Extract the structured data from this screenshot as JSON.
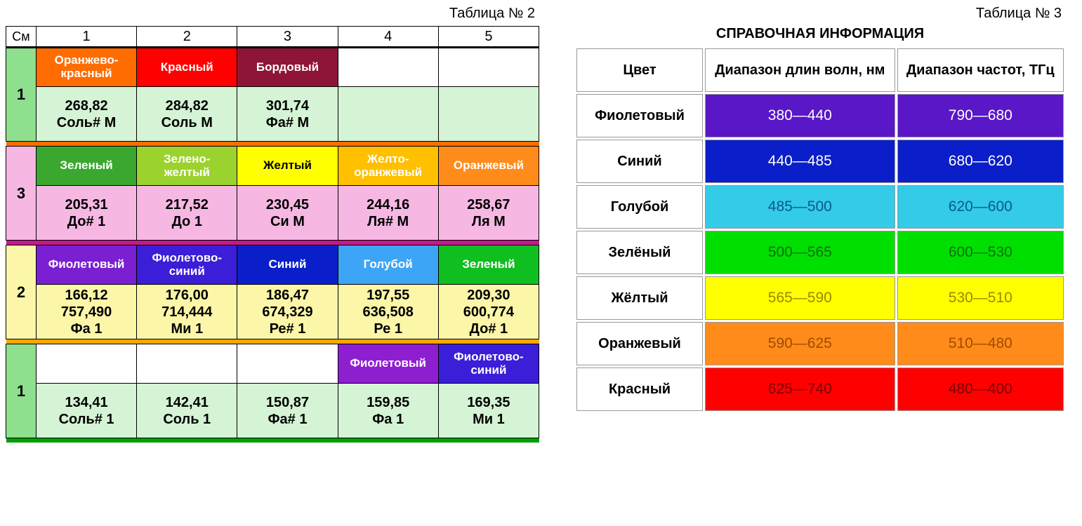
{
  "table2": {
    "title": "Таблица № 2",
    "cm_label": "См",
    "columns": [
      "1",
      "2",
      "3",
      "4",
      "5"
    ],
    "header_border_color": "#000000",
    "groups": [
      {
        "row_label": "1",
        "row_label_bg": "#8ee08e",
        "sep_color": "#ff6c00",
        "value_bg": "#d5f3d5",
        "colors": [
          {
            "text": "Оранжево-\nкрасный",
            "bg": "#ff6c00",
            "fg": "#ffffff"
          },
          {
            "text": "Красный",
            "bg": "#ff0000",
            "fg": "#ffffff"
          },
          {
            "text": "Бордовый",
            "bg": "#8e1537",
            "fg": "#ffffff"
          },
          {
            "text": "",
            "bg": "#ffffff",
            "fg": "#000000"
          },
          {
            "text": "",
            "bg": "#ffffff",
            "fg": "#000000"
          }
        ],
        "values": [
          {
            "lines": [
              "268,82",
              "Соль# М"
            ]
          },
          {
            "lines": [
              "284,82",
              "Соль М"
            ]
          },
          {
            "lines": [
              "301,74",
              "Фа# М"
            ]
          },
          {
            "lines": []
          },
          {
            "lines": []
          }
        ]
      },
      {
        "row_label": "3",
        "row_label_bg": "#f6b8e3",
        "sep_color": "#c4198b",
        "value_bg": "#f6b8e3",
        "colors": [
          {
            "text": "Зеленый",
            "bg": "#3aa82f",
            "fg": "#ffffff"
          },
          {
            "text": "Зелено-\nжелтый",
            "bg": "#9cd22e",
            "fg": "#ffffff"
          },
          {
            "text": "Желтый",
            "bg": "#ffff00",
            "fg": "#000000"
          },
          {
            "text": "Желто-\nоранжевый",
            "bg": "#ffc000",
            "fg": "#ffffff"
          },
          {
            "text": "Оранжевый",
            "bg": "#ff8c1a",
            "fg": "#ffffff"
          }
        ],
        "values": [
          {
            "lines": [
              "205,31",
              "До# 1"
            ]
          },
          {
            "lines": [
              "217,52",
              "До 1"
            ]
          },
          {
            "lines": [
              "230,45",
              "Си М"
            ]
          },
          {
            "lines": [
              "244,16",
              "Ля# М"
            ]
          },
          {
            "lines": [
              "258,67",
              "Ля М"
            ]
          }
        ]
      },
      {
        "row_label": "2",
        "row_label_bg": "#fbf6a8",
        "sep_color": "#ffa500",
        "value_bg": "#fbf6a8",
        "colors": [
          {
            "text": "Фиолетовый",
            "bg": "#7a1fd1",
            "fg": "#ffffff"
          },
          {
            "text": "Фиолетово-\nсиний",
            "bg": "#3b1ed8",
            "fg": "#ffffff"
          },
          {
            "text": "Синий",
            "bg": "#0a1fc9",
            "fg": "#ffffff"
          },
          {
            "text": "Голубой",
            "bg": "#3da5f5",
            "fg": "#ffffff"
          },
          {
            "text": "Зеленый",
            "bg": "#0fbf1f",
            "fg": "#ffffff"
          }
        ],
        "values": [
          {
            "lines": [
              "166,12",
              "757,490",
              "Фа 1"
            ]
          },
          {
            "lines": [
              "176,00",
              "714,444",
              "Ми 1"
            ]
          },
          {
            "lines": [
              "186,47",
              "674,329",
              "Ре# 1"
            ]
          },
          {
            "lines": [
              "197,55",
              "636,508",
              "Ре 1"
            ]
          },
          {
            "lines": [
              "209,30",
              "600,774",
              "До# 1"
            ]
          }
        ]
      },
      {
        "row_label": "1",
        "row_label_bg": "#8ee08e",
        "sep_color": "#00a000",
        "value_bg": "#d5f3d5",
        "colors": [
          {
            "text": "",
            "bg": "#ffffff",
            "fg": "#000000"
          },
          {
            "text": "",
            "bg": "#ffffff",
            "fg": "#000000"
          },
          {
            "text": "",
            "bg": "#ffffff",
            "fg": "#000000"
          },
          {
            "text": "Фиолетовый",
            "bg": "#8e1fd1",
            "fg": "#ffffff"
          },
          {
            "text": "Фиолетово-\nсиний",
            "bg": "#3b1ed8",
            "fg": "#ffffff"
          }
        ],
        "values": [
          {
            "lines": [
              "134,41",
              "Соль# 1"
            ]
          },
          {
            "lines": [
              "142,41",
              "Соль 1"
            ]
          },
          {
            "lines": [
              "150,87",
              "Фа# 1"
            ]
          },
          {
            "lines": [
              "159,85",
              "Фа 1"
            ]
          },
          {
            "lines": [
              "169,35",
              "Ми 1"
            ]
          }
        ]
      }
    ]
  },
  "table3": {
    "title": "Таблица № 3",
    "ref_title": "СПРАВОЧНАЯ ИНФОРМАЦИЯ",
    "headers": [
      "Цвет",
      "Диапазон длин волн, нм",
      "Диапазон частот, ТГц"
    ],
    "rows": [
      {
        "name": "Фиолетовый",
        "wl": "380—440",
        "fr": "790—680",
        "bg": "#5a17c7",
        "fg": "#ffffff"
      },
      {
        "name": "Синий",
        "wl": "440—485",
        "fr": "680—620",
        "bg": "#0a1fc9",
        "fg": "#ffffff"
      },
      {
        "name": "Голубой",
        "wl": "485—500",
        "fr": "620—600",
        "bg": "#33cbe8",
        "fg": "#0a5a8a"
      },
      {
        "name": "Зелёный",
        "wl": "500—565",
        "fr": "600—530",
        "bg": "#00e000",
        "fg": "#0a6e0a"
      },
      {
        "name": "Жёлтый",
        "wl": "565—590",
        "fr": "530—510",
        "bg": "#ffff00",
        "fg": "#9a8a00"
      },
      {
        "name": "Оранжевый",
        "wl": "590—625",
        "fr": "510—480",
        "bg": "#ff8c1a",
        "fg": "#a04a00"
      },
      {
        "name": "Красный",
        "wl": "625—740",
        "fr": "480—400",
        "bg": "#ff0000",
        "fg": "#7a0000"
      }
    ]
  }
}
